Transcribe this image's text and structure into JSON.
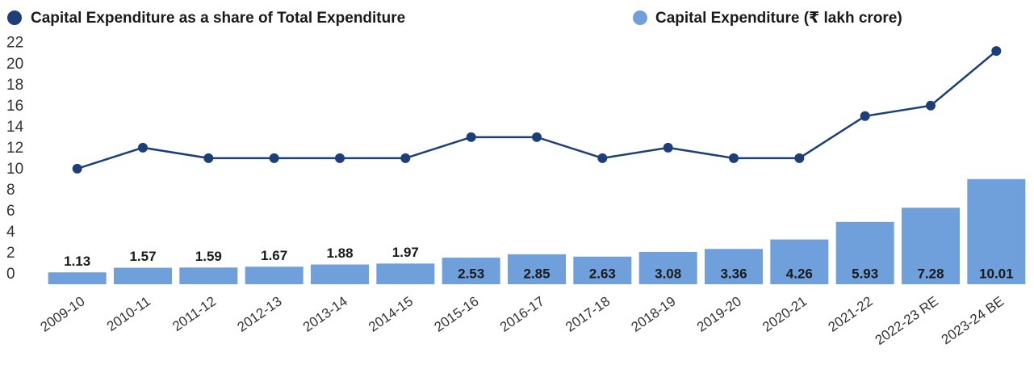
{
  "chart_data": {
    "type": "bar_line",
    "categories": [
      "2009-10",
      "2010-11",
      "2011-12",
      "2012-13",
      "2013-14",
      "2014-15",
      "2015-16",
      "2016-17",
      "2017-18",
      "2018-19",
      "2019-20",
      "2020-21",
      "2021-22",
      "2022-23 RE",
      "2023-24 BE"
    ],
    "series": [
      {
        "name": "Capital Expenditure as a share of Total Expenditure",
        "type": "line",
        "color": "#1c3f7a",
        "values": [
          11,
          13,
          12,
          12,
          12,
          12,
          14,
          14,
          12,
          13,
          12,
          12,
          16,
          17,
          22.2
        ]
      },
      {
        "name": "Capital Expenditure (₹ lakh crore)",
        "type": "bar",
        "color": "#6fa0dc",
        "values": [
          1.13,
          1.57,
          1.59,
          1.67,
          1.88,
          1.97,
          2.53,
          2.85,
          2.63,
          3.08,
          3.36,
          4.26,
          5.93,
          7.28,
          10.01
        ]
      }
    ],
    "ylim": [
      0,
      22.9
    ],
    "yticks": [
      0,
      2,
      4,
      6,
      8,
      10,
      12,
      14,
      16,
      18,
      20,
      22
    ],
    "legend": "top"
  }
}
